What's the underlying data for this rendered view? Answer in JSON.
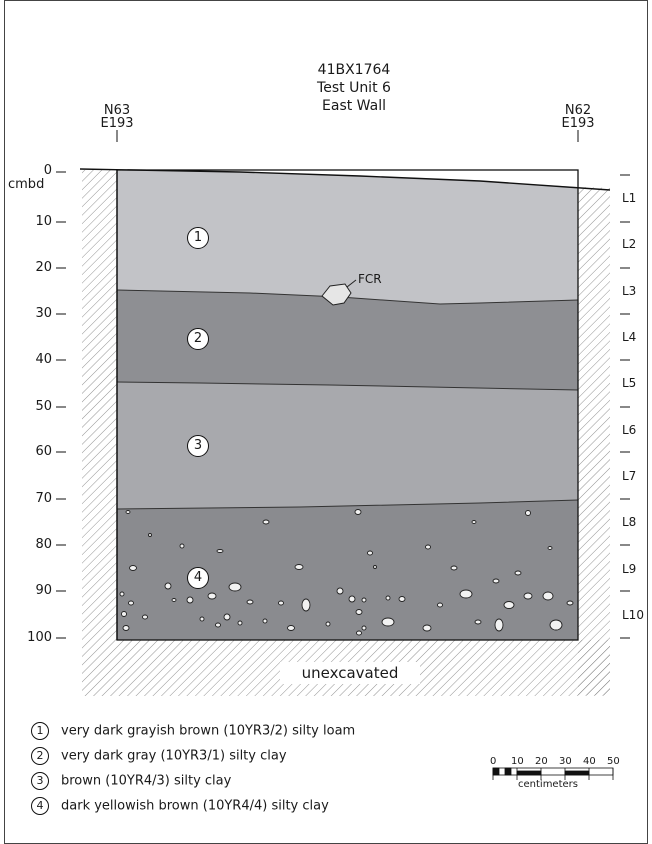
{
  "title": {
    "site": "41BX1764",
    "unit": "Test Unit 6",
    "wall": "East Wall"
  },
  "corners": {
    "left": {
      "north": "N63",
      "east": "E193"
    },
    "right": {
      "north": "N62",
      "east": "E193"
    }
  },
  "depth_axis": {
    "unit": "cmbd",
    "ticks": [
      "0",
      "10",
      "20",
      "30",
      "40",
      "50",
      "60",
      "70",
      "80",
      "90",
      "100"
    ]
  },
  "levels": [
    "L1",
    "L2",
    "L3",
    "L4",
    "L5",
    "L6",
    "L7",
    "L8",
    "L9",
    "L10"
  ],
  "strata": [
    {
      "number": "1",
      "fill": "#c2c3c7"
    },
    {
      "number": "2",
      "fill": "#8e8f93"
    },
    {
      "number": "3",
      "fill": "#a8a9ad"
    },
    {
      "number": "4",
      "fill": "#8a8b8f"
    }
  ],
  "feature_label": "FCR",
  "below_label": "unexcavated",
  "legend": [
    {
      "number": "1",
      "text": "very dark grayish brown (10YR3/2) silty loam"
    },
    {
      "number": "2",
      "text": "very dark gray (10YR3/1) silty clay"
    },
    {
      "number": "3",
      "text": "brown (10YR4/3) silty clay"
    },
    {
      "number": "4",
      "text": "dark yellowish brown (10YR4/4) silty clay"
    }
  ],
  "scale": {
    "ticks": [
      "0",
      "10",
      "20",
      "30",
      "40",
      "50"
    ],
    "unit": "centimeters"
  }
}
